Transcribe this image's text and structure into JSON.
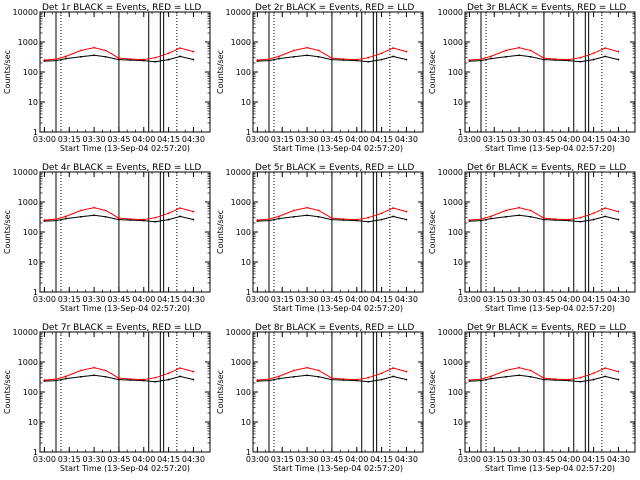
{
  "figure": {
    "xlabel": "Start Time (13-Sep-04 02:57:20)",
    "ylabel": "Counts/sec",
    "x_tick_labels": [
      "03:00",
      "03:15",
      "03:30",
      "03:45",
      "04:00",
      "04:15",
      "04:30"
    ],
    "y_tick_labels": [
      "1",
      "10",
      "100",
      "1000",
      "10000"
    ],
    "colors": {
      "events": "#000000",
      "lld": "#ff0000",
      "axes": "#000000",
      "background": "#ffffff"
    }
  },
  "chart_data": [
    {
      "type": "line",
      "title": "Det 1r BLACK = Events, RED = LLD",
      "xlabel": "Start Time (13-Sep-04 02:57:20)",
      "ylabel": "Counts/sec",
      "y_scale": "log",
      "ylim": [
        1,
        10000
      ],
      "xlim": [
        "02:57:20",
        "04:40"
      ],
      "x": [
        "03:00",
        "03:07",
        "03:13",
        "03:22",
        "03:30",
        "03:37",
        "03:45",
        "03:52",
        "04:00",
        "04:07",
        "04:15",
        "04:22",
        "04:30"
      ],
      "series": [
        {
          "name": "Events",
          "color": "#000000",
          "values": [
            230,
            240,
            280,
            320,
            360,
            320,
            260,
            250,
            240,
            220,
            260,
            330,
            260
          ]
        },
        {
          "name": "LLD",
          "color": "#ff0000",
          "values": [
            250,
            270,
            330,
            520,
            650,
            520,
            290,
            270,
            260,
            300,
            420,
            630,
            480
          ]
        }
      ],
      "vertical_markers_solid": [
        "03:07",
        "03:45",
        "04:03",
        "04:10",
        "04:12"
      ],
      "vertical_markers_dotted": [
        "03:10",
        "04:20"
      ],
      "grid": false
    },
    {
      "type": "line",
      "title": "Det 2r BLACK = Events, RED = LLD",
      "xlabel": "Start Time (13-Sep-04 02:57:20)",
      "ylabel": "Counts/sec",
      "y_scale": "log",
      "ylim": [
        1,
        10000
      ],
      "xlim": [
        "02:57:20",
        "04:40"
      ],
      "x": [
        "03:00",
        "03:07",
        "03:13",
        "03:22",
        "03:30",
        "03:37",
        "03:45",
        "03:52",
        "04:00",
        "04:07",
        "04:15",
        "04:22",
        "04:30"
      ],
      "series": [
        {
          "name": "Events",
          "color": "#000000",
          "values": [
            230,
            240,
            280,
            320,
            360,
            320,
            260,
            250,
            240,
            220,
            260,
            330,
            260
          ]
        },
        {
          "name": "LLD",
          "color": "#ff0000",
          "values": [
            250,
            270,
            330,
            520,
            650,
            520,
            290,
            270,
            260,
            300,
            420,
            630,
            480
          ]
        }
      ],
      "vertical_markers_solid": [
        "03:07",
        "03:45",
        "04:03",
        "04:10",
        "04:12"
      ],
      "vertical_markers_dotted": [
        "03:10",
        "04:20"
      ],
      "grid": false
    },
    {
      "type": "line",
      "title": "Det 3r BLACK = Events, RED = LLD",
      "xlabel": "Start Time (13-Sep-04 02:57:20)",
      "ylabel": "Counts/sec",
      "y_scale": "log",
      "ylim": [
        1,
        10000
      ],
      "xlim": [
        "02:57:20",
        "04:40"
      ],
      "x": [
        "03:00",
        "03:07",
        "03:13",
        "03:22",
        "03:30",
        "03:37",
        "03:45",
        "03:52",
        "04:00",
        "04:07",
        "04:15",
        "04:22",
        "04:30"
      ],
      "series": [
        {
          "name": "Events",
          "color": "#000000",
          "values": [
            230,
            240,
            280,
            320,
            360,
            320,
            260,
            250,
            240,
            220,
            260,
            330,
            260
          ]
        },
        {
          "name": "LLD",
          "color": "#ff0000",
          "values": [
            250,
            270,
            330,
            520,
            650,
            520,
            290,
            270,
            260,
            300,
            420,
            630,
            480
          ]
        }
      ],
      "vertical_markers_solid": [
        "03:07",
        "03:45",
        "04:03",
        "04:10",
        "04:12"
      ],
      "vertical_markers_dotted": [
        "03:10",
        "04:20"
      ],
      "grid": false
    },
    {
      "type": "line",
      "title": "Det 4r BLACK = Events, RED = LLD",
      "xlabel": "Start Time (13-Sep-04 02:57:20)",
      "ylabel": "Counts/sec",
      "y_scale": "log",
      "ylim": [
        1,
        10000
      ],
      "xlim": [
        "02:57:20",
        "04:40"
      ],
      "x": [
        "03:00",
        "03:07",
        "03:13",
        "03:22",
        "03:30",
        "03:37",
        "03:45",
        "03:52",
        "04:00",
        "04:07",
        "04:15",
        "04:22",
        "04:30"
      ],
      "series": [
        {
          "name": "Events",
          "color": "#000000",
          "values": [
            230,
            240,
            280,
            320,
            360,
            320,
            260,
            250,
            240,
            220,
            260,
            330,
            260
          ]
        },
        {
          "name": "LLD",
          "color": "#ff0000",
          "values": [
            250,
            270,
            330,
            520,
            650,
            520,
            290,
            270,
            260,
            300,
            420,
            630,
            480
          ]
        }
      ],
      "vertical_markers_solid": [
        "03:07",
        "03:45",
        "04:03",
        "04:10",
        "04:12"
      ],
      "vertical_markers_dotted": [
        "03:10",
        "04:20"
      ],
      "grid": false
    },
    {
      "type": "line",
      "title": "Det 5r BLACK = Events, RED = LLD",
      "xlabel": "Start Time (13-Sep-04 02:57:20)",
      "ylabel": "Counts/sec",
      "y_scale": "log",
      "ylim": [
        1,
        10000
      ],
      "xlim": [
        "02:57:20",
        "04:40"
      ],
      "x": [
        "03:00",
        "03:07",
        "03:13",
        "03:22",
        "03:30",
        "03:37",
        "03:45",
        "03:52",
        "04:00",
        "04:07",
        "04:15",
        "04:22",
        "04:30"
      ],
      "series": [
        {
          "name": "Events",
          "color": "#000000",
          "values": [
            230,
            240,
            280,
            320,
            360,
            320,
            260,
            250,
            240,
            220,
            260,
            330,
            260
          ]
        },
        {
          "name": "LLD",
          "color": "#ff0000",
          "values": [
            250,
            270,
            330,
            520,
            650,
            520,
            290,
            270,
            260,
            300,
            420,
            630,
            480
          ]
        }
      ],
      "vertical_markers_solid": [
        "03:07",
        "03:45",
        "04:03",
        "04:10",
        "04:12"
      ],
      "vertical_markers_dotted": [
        "03:10",
        "04:20"
      ],
      "grid": false
    },
    {
      "type": "line",
      "title": "Det 6r BLACK = Events, RED = LLD",
      "xlabel": "Start Time (13-Sep-04 02:57:20)",
      "ylabel": "Counts/sec",
      "y_scale": "log",
      "ylim": [
        1,
        10000
      ],
      "xlim": [
        "02:57:20",
        "04:40"
      ],
      "x": [
        "03:00",
        "03:07",
        "03:13",
        "03:22",
        "03:30",
        "03:37",
        "03:45",
        "03:52",
        "04:00",
        "04:07",
        "04:15",
        "04:22",
        "04:30"
      ],
      "series": [
        {
          "name": "Events",
          "color": "#000000",
          "values": [
            230,
            240,
            280,
            320,
            360,
            320,
            260,
            250,
            240,
            220,
            260,
            330,
            260
          ]
        },
        {
          "name": "LLD",
          "color": "#ff0000",
          "values": [
            250,
            270,
            330,
            520,
            650,
            520,
            290,
            270,
            260,
            300,
            420,
            630,
            480
          ]
        }
      ],
      "vertical_markers_solid": [
        "03:07",
        "03:45",
        "04:03",
        "04:10",
        "04:12"
      ],
      "vertical_markers_dotted": [
        "03:10",
        "04:20"
      ],
      "grid": false
    },
    {
      "type": "line",
      "title": "Det 7r BLACK = Events, RED = LLD",
      "xlabel": "Start Time (13-Sep-04 02:57:20)",
      "ylabel": "Counts/sec",
      "y_scale": "log",
      "ylim": [
        1,
        10000
      ],
      "xlim": [
        "02:57:20",
        "04:40"
      ],
      "x": [
        "03:00",
        "03:07",
        "03:13",
        "03:22",
        "03:30",
        "03:37",
        "03:45",
        "03:52",
        "04:00",
        "04:07",
        "04:15",
        "04:22",
        "04:30"
      ],
      "series": [
        {
          "name": "Events",
          "color": "#000000",
          "values": [
            230,
            240,
            280,
            320,
            360,
            320,
            260,
            250,
            240,
            220,
            260,
            330,
            260
          ]
        },
        {
          "name": "LLD",
          "color": "#ff0000",
          "values": [
            250,
            270,
            330,
            520,
            650,
            520,
            290,
            270,
            260,
            300,
            420,
            630,
            480
          ]
        }
      ],
      "vertical_markers_solid": [
        "03:07",
        "03:45",
        "04:03",
        "04:10",
        "04:12"
      ],
      "vertical_markers_dotted": [
        "03:10",
        "04:20"
      ],
      "grid": false
    },
    {
      "type": "line",
      "title": "Det 8r BLACK = Events, RED = LLD",
      "xlabel": "Start Time (13-Sep-04 02:57:20)",
      "ylabel": "Counts/sec",
      "y_scale": "log",
      "ylim": [
        1,
        10000
      ],
      "xlim": [
        "02:57:20",
        "04:40"
      ],
      "x": [
        "03:00",
        "03:07",
        "03:13",
        "03:22",
        "03:30",
        "03:37",
        "03:45",
        "03:52",
        "04:00",
        "04:07",
        "04:15",
        "04:22",
        "04:30"
      ],
      "series": [
        {
          "name": "Events",
          "color": "#000000",
          "values": [
            230,
            240,
            280,
            320,
            360,
            320,
            260,
            250,
            240,
            220,
            260,
            330,
            260
          ]
        },
        {
          "name": "LLD",
          "color": "#ff0000",
          "values": [
            250,
            270,
            330,
            520,
            650,
            520,
            290,
            270,
            260,
            300,
            420,
            630,
            480
          ]
        }
      ],
      "vertical_markers_solid": [
        "03:07",
        "03:45",
        "04:03",
        "04:10",
        "04:12"
      ],
      "vertical_markers_dotted": [
        "03:10",
        "04:20"
      ],
      "grid": false
    },
    {
      "type": "line",
      "title": "Det 9r BLACK = Events, RED = LLD",
      "xlabel": "Start Time (13-Sep-04 02:57:20)",
      "ylabel": "Counts/sec",
      "y_scale": "log",
      "ylim": [
        1,
        10000
      ],
      "xlim": [
        "02:57:20",
        "04:40"
      ],
      "x": [
        "03:00",
        "03:07",
        "03:13",
        "03:22",
        "03:30",
        "03:37",
        "03:45",
        "03:52",
        "04:00",
        "04:07",
        "04:15",
        "04:22",
        "04:30"
      ],
      "series": [
        {
          "name": "Events",
          "color": "#000000",
          "values": [
            230,
            240,
            280,
            320,
            360,
            320,
            260,
            250,
            240,
            220,
            260,
            330,
            260
          ]
        },
        {
          "name": "LLD",
          "color": "#ff0000",
          "values": [
            250,
            270,
            330,
            520,
            650,
            520,
            290,
            270,
            260,
            300,
            420,
            630,
            480
          ]
        }
      ],
      "vertical_markers_solid": [
        "03:07",
        "03:45",
        "04:03",
        "04:10",
        "04:12"
      ],
      "vertical_markers_dotted": [
        "03:10",
        "04:20"
      ],
      "grid": false
    }
  ]
}
